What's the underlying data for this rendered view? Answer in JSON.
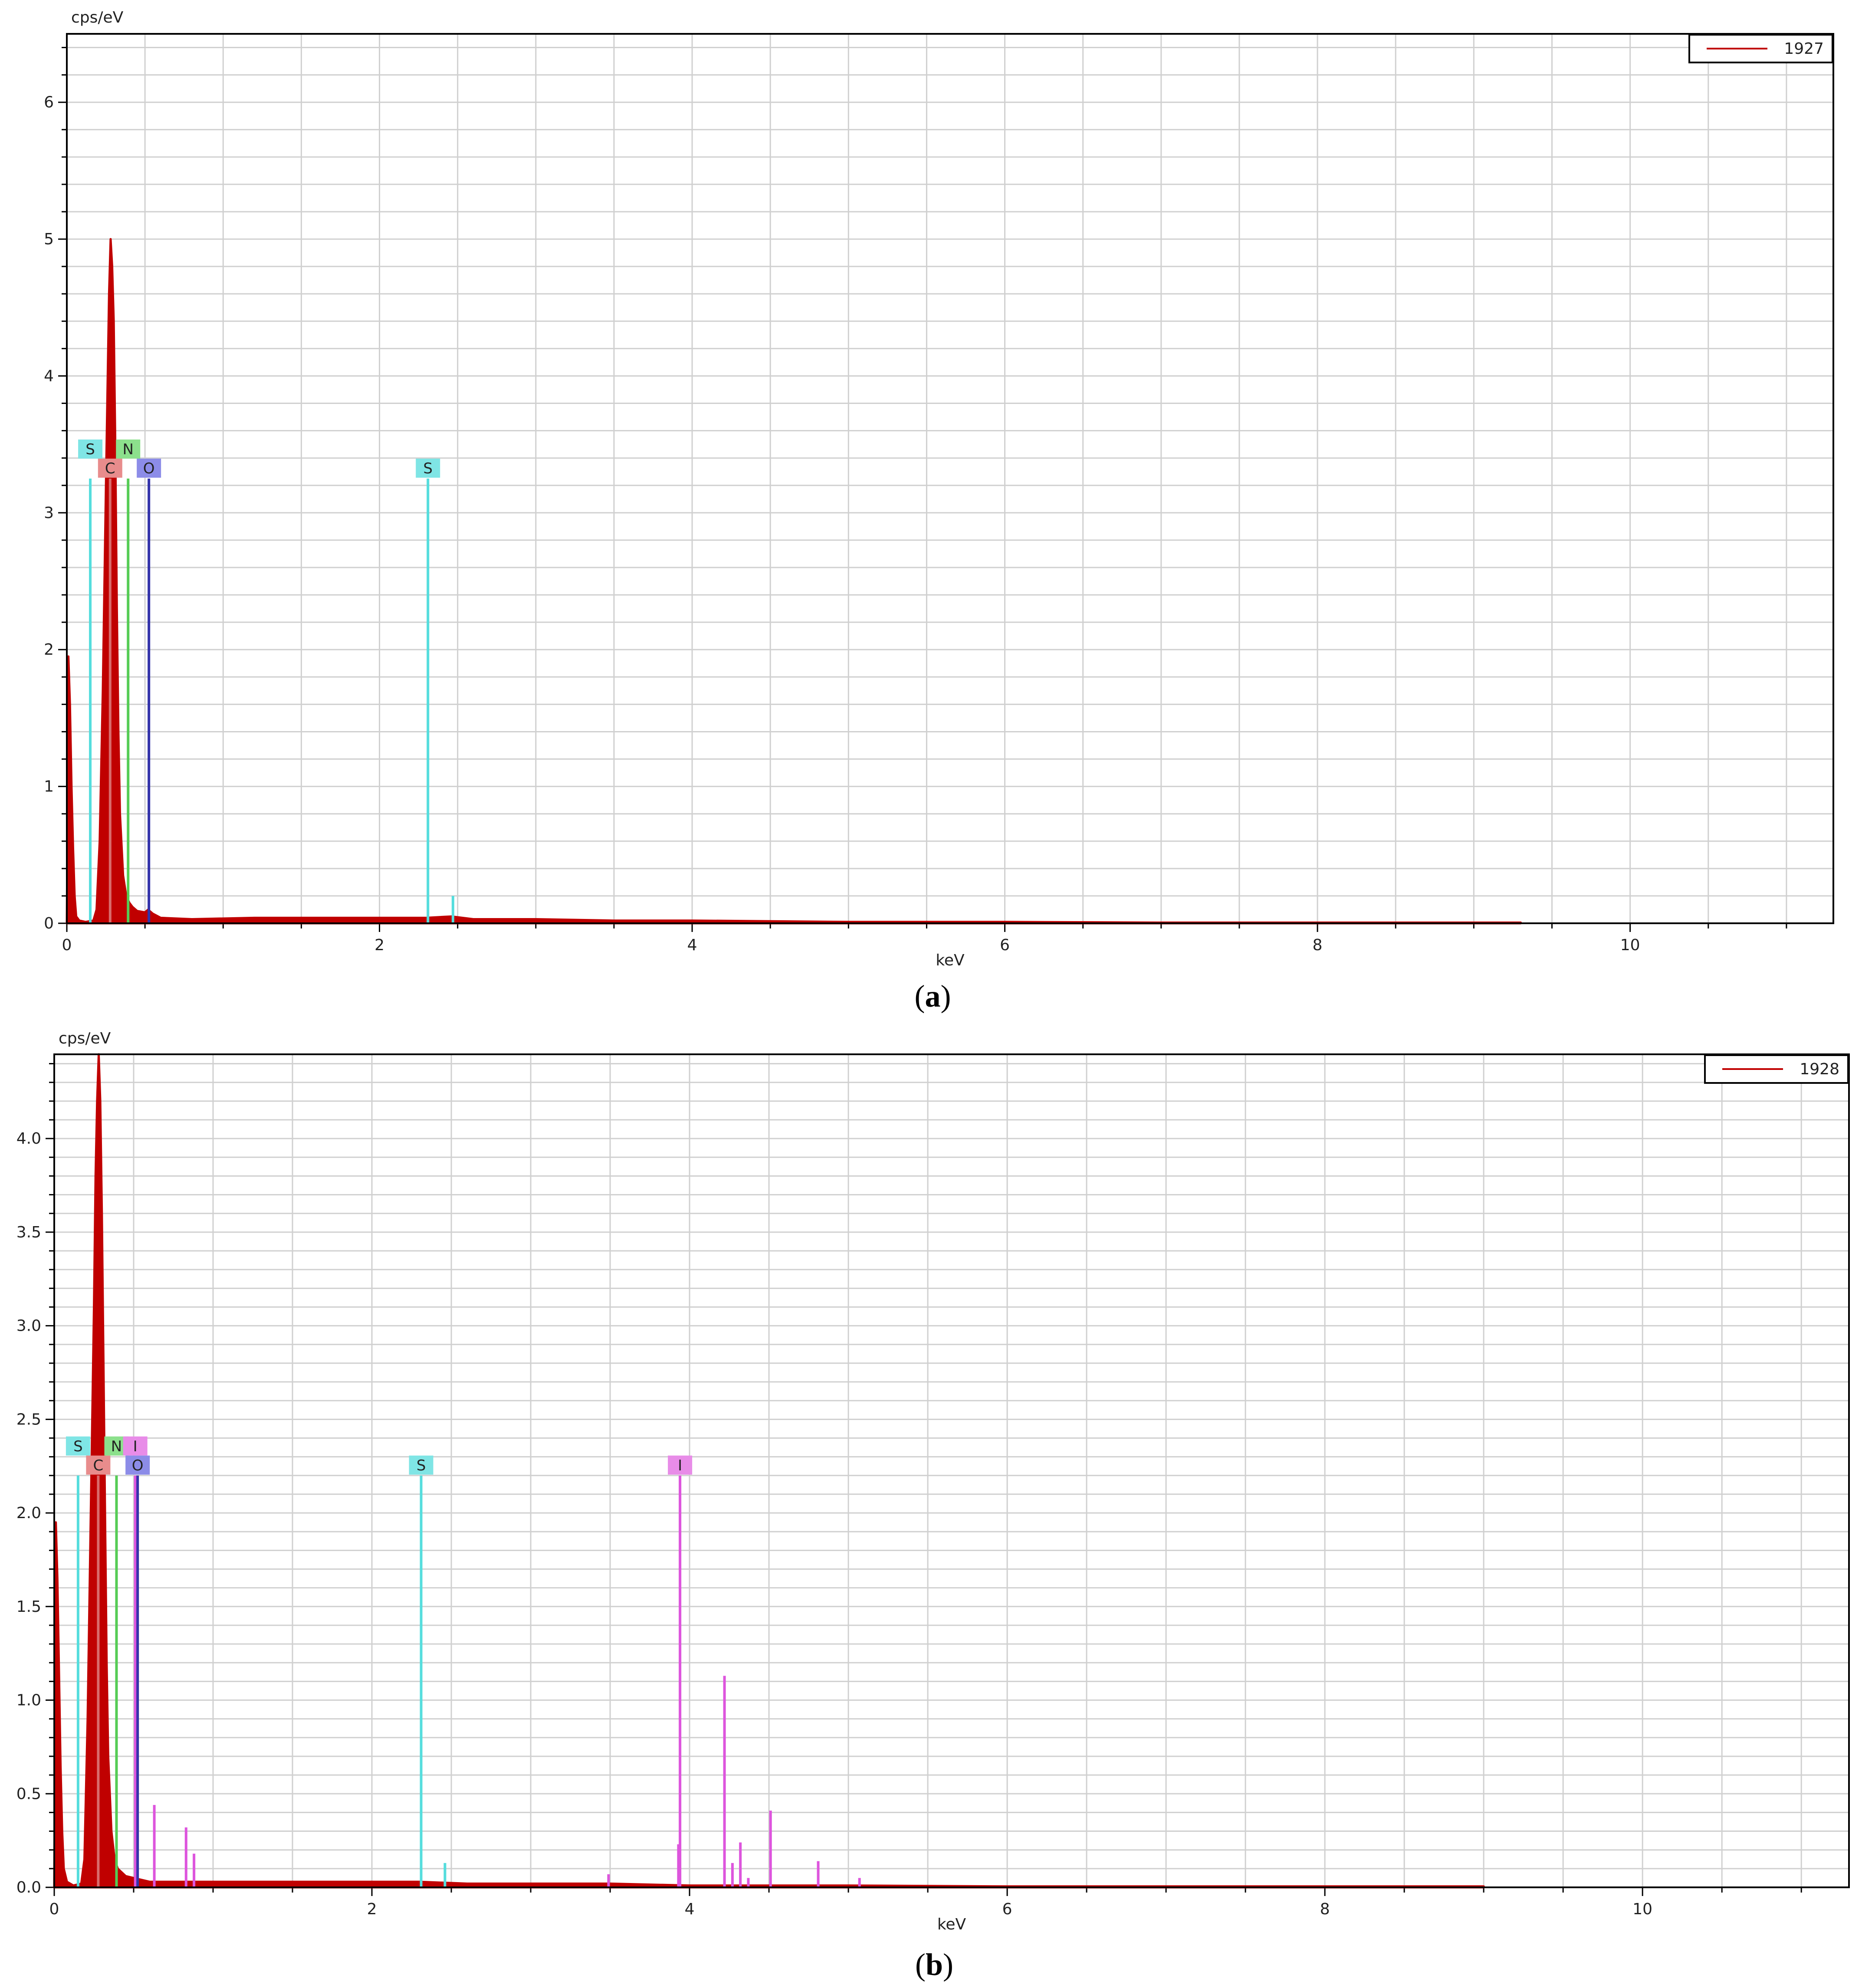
{
  "panels": [
    {
      "id": "a",
      "caption_letter": "a",
      "chart_data": {
        "type": "line",
        "ylabel": "cps/eV",
        "xlabel": "keV",
        "xlim": [
          0,
          11.3
        ],
        "ylim": [
          0,
          6.5
        ],
        "x_ticks": [
          0,
          2,
          4,
          6,
          8,
          10
        ],
        "x_tick_labels": [
          "0",
          "2",
          "4",
          "6",
          "8",
          "10"
        ],
        "x_minor_step": 0.5,
        "y_ticks": [
          0,
          1,
          2,
          3,
          4,
          5,
          6
        ],
        "y_tick_labels": [
          "0",
          "1",
          "2",
          "3",
          "4",
          "5",
          "6"
        ],
        "y_minor_step": 0.2,
        "grid": true,
        "legend": {
          "position": "top-right",
          "entries": [
            {
              "name": "1927",
              "color": "#c00000"
            }
          ]
        },
        "series": [
          {
            "name": "1927",
            "color": "#c00000",
            "points": [
              [
                0,
                0
              ],
              [
                0.01,
                1.95
              ],
              [
                0.02,
                1.6
              ],
              [
                0.03,
                1.0
              ],
              [
                0.04,
                0.55
              ],
              [
                0.05,
                0.2
              ],
              [
                0.06,
                0.05
              ],
              [
                0.08,
                0.02
              ],
              [
                0.12,
                0.01
              ],
              [
                0.17,
                0.02
              ],
              [
                0.19,
                0.1
              ],
              [
                0.21,
                0.6
              ],
              [
                0.23,
                1.7
              ],
              [
                0.25,
                3.2
              ],
              [
                0.26,
                3.9
              ],
              [
                0.27,
                4.6
              ],
              [
                0.28,
                5.0
              ],
              [
                0.29,
                4.8
              ],
              [
                0.3,
                4.4
              ],
              [
                0.31,
                3.5
              ],
              [
                0.32,
                2.3
              ],
              [
                0.33,
                1.4
              ],
              [
                0.34,
                0.8
              ],
              [
                0.36,
                0.35
              ],
              [
                0.38,
                0.2
              ],
              [
                0.4,
                0.15
              ],
              [
                0.42,
                0.12
              ],
              [
                0.45,
                0.09
              ],
              [
                0.5,
                0.08
              ],
              [
                0.52,
                0.1
              ],
              [
                0.55,
                0.07
              ],
              [
                0.6,
                0.04
              ],
              [
                0.8,
                0.03
              ],
              [
                1.2,
                0.04
              ],
              [
                1.6,
                0.04
              ],
              [
                2.0,
                0.04
              ],
              [
                2.3,
                0.04
              ],
              [
                2.46,
                0.05
              ],
              [
                2.6,
                0.03
              ],
              [
                3.0,
                0.03
              ],
              [
                3.5,
                0.02
              ],
              [
                4.0,
                0.02
              ],
              [
                5.0,
                0.01
              ],
              [
                6.0,
                0.01
              ],
              [
                7.0,
                0.005
              ],
              [
                8.0,
                0.005
              ],
              [
                9.3,
                0.005
              ]
            ]
          }
        ],
        "extra_lines": [
          {
            "x": 2.47,
            "y": 0.2,
            "color": "#55dddd"
          }
        ],
        "element_markers": [
          {
            "label": "S",
            "x": 0.15,
            "height": 3.25,
            "label_row": "upper",
            "color": "#55dddd",
            "label_bg": "#7fe5e5"
          },
          {
            "label": "C",
            "x": 0.277,
            "height": 3.25,
            "label_row": "lower",
            "color": "#d96b6b",
            "label_bg": "#e88c8c"
          },
          {
            "label": "N",
            "x": 0.392,
            "height": 3.25,
            "label_row": "upper",
            "color": "#55cc55",
            "label_bg": "#8ce08c"
          },
          {
            "label": "O",
            "x": 0.525,
            "height": 3.25,
            "label_row": "lower",
            "color": "#3333aa",
            "label_bg": "#8c8ce8"
          },
          {
            "label": "S",
            "x": 2.31,
            "height": 3.25,
            "label_row": "lower",
            "color": "#55dddd",
            "label_bg": "#7fe5e5"
          }
        ]
      }
    },
    {
      "id": "b",
      "caption_letter": "b",
      "chart_data": {
        "type": "line",
        "ylabel": "cps/eV",
        "xlabel": "keV",
        "xlim": [
          0,
          11.3
        ],
        "ylim": [
          0,
          4.45
        ],
        "x_ticks": [
          0,
          2,
          4,
          6,
          8,
          10
        ],
        "x_tick_labels": [
          "0",
          "2",
          "4",
          "6",
          "8",
          "10"
        ],
        "x_minor_step": 0.5,
        "y_ticks": [
          0,
          0.5,
          1.0,
          1.5,
          2.0,
          2.5,
          3.0,
          3.5,
          4.0
        ],
        "y_tick_labels": [
          "0.0",
          "0.5",
          "1.0",
          "1.5",
          "2.0",
          "2.5",
          "3.0",
          "3.5",
          "4.0"
        ],
        "y_minor_step": 0.1,
        "grid": true,
        "legend": {
          "position": "top-right",
          "entries": [
            {
              "name": "1928",
              "color": "#c00000"
            }
          ]
        },
        "series": [
          {
            "name": "1928",
            "color": "#c00000",
            "points": [
              [
                0,
                0
              ],
              [
                0.01,
                1.95
              ],
              [
                0.02,
                1.65
              ],
              [
                0.03,
                1.15
              ],
              [
                0.04,
                0.65
              ],
              [
                0.05,
                0.3
              ],
              [
                0.06,
                0.1
              ],
              [
                0.08,
                0.03
              ],
              [
                0.12,
                0.01
              ],
              [
                0.17,
                0.02
              ],
              [
                0.19,
                0.15
              ],
              [
                0.21,
                0.9
              ],
              [
                0.23,
                2.0
              ],
              [
                0.25,
                3.1
              ],
              [
                0.26,
                3.8
              ],
              [
                0.27,
                4.2
              ],
              [
                0.28,
                4.45
              ],
              [
                0.29,
                4.2
              ],
              [
                0.3,
                3.6
              ],
              [
                0.31,
                2.8
              ],
              [
                0.32,
                2.0
              ],
              [
                0.33,
                1.2
              ],
              [
                0.34,
                0.7
              ],
              [
                0.36,
                0.3
              ],
              [
                0.38,
                0.15
              ],
              [
                0.4,
                0.1
              ],
              [
                0.45,
                0.06
              ],
              [
                0.5,
                0.05
              ],
              [
                0.6,
                0.03
              ],
              [
                0.8,
                0.03
              ],
              [
                1.2,
                0.03
              ],
              [
                1.6,
                0.03
              ],
              [
                2.0,
                0.03
              ],
              [
                2.3,
                0.03
              ],
              [
                2.6,
                0.02
              ],
              [
                3.0,
                0.02
              ],
              [
                3.5,
                0.02
              ],
              [
                4.0,
                0.01
              ],
              [
                5.0,
                0.01
              ],
              [
                6.0,
                0.005
              ],
              [
                7.0,
                0.005
              ],
              [
                8.0,
                0.005
              ],
              [
                9.0,
                0.005
              ]
            ]
          }
        ],
        "extra_lines": [
          {
            "x": 0.63,
            "y": 0.44,
            "color": "#dd55dd"
          },
          {
            "x": 0.83,
            "y": 0.32,
            "color": "#dd55dd"
          },
          {
            "x": 0.88,
            "y": 0.18,
            "color": "#dd55dd"
          },
          {
            "x": 2.46,
            "y": 0.13,
            "color": "#55dddd"
          },
          {
            "x": 3.49,
            "y": 0.07,
            "color": "#dd55dd"
          },
          {
            "x": 3.93,
            "y": 0.23,
            "color": "#dd55dd"
          },
          {
            "x": 4.22,
            "y": 1.13,
            "color": "#dd55dd"
          },
          {
            "x": 4.27,
            "y": 0.13,
            "color": "#dd55dd"
          },
          {
            "x": 4.32,
            "y": 0.24,
            "color": "#dd55dd"
          },
          {
            "x": 4.37,
            "y": 0.05,
            "color": "#dd55dd"
          },
          {
            "x": 4.51,
            "y": 0.41,
            "color": "#dd55dd"
          },
          {
            "x": 4.81,
            "y": 0.14,
            "color": "#dd55dd"
          },
          {
            "x": 5.07,
            "y": 0.05,
            "color": "#dd55dd"
          }
        ],
        "element_markers": [
          {
            "label": "S",
            "x": 0.15,
            "height": 2.2,
            "label_row": "upper",
            "color": "#55dddd",
            "label_bg": "#7fe5e5"
          },
          {
            "label": "C",
            "x": 0.277,
            "height": 2.2,
            "label_row": "lower",
            "color": "#d96b6b",
            "label_bg": "#e88c8c"
          },
          {
            "label": "N",
            "x": 0.392,
            "height": 2.2,
            "label_row": "upper",
            "color": "#55cc55",
            "label_bg": "#8ce08c"
          },
          {
            "label": "I",
            "x": 0.51,
            "height": 2.2,
            "label_row": "upper",
            "color": "#dd55dd",
            "label_bg": "#e88ce8"
          },
          {
            "label": "O",
            "x": 0.525,
            "height": 2.2,
            "label_row": "lower",
            "color": "#3333aa",
            "label_bg": "#8c8ce8"
          },
          {
            "label": "S",
            "x": 2.31,
            "height": 2.2,
            "label_row": "lower",
            "color": "#55dddd",
            "label_bg": "#7fe5e5"
          },
          {
            "label": "I",
            "x": 3.94,
            "height": 2.2,
            "label_row": "lower",
            "color": "#dd55dd",
            "label_bg": "#e88ce8"
          }
        ]
      }
    }
  ]
}
